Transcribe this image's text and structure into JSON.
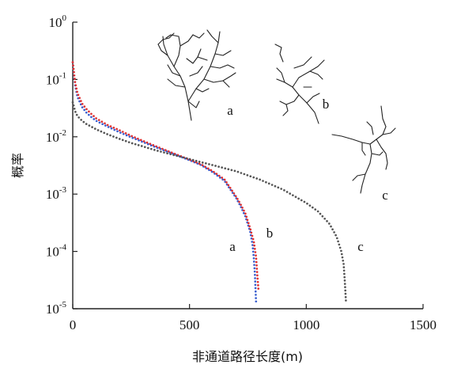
{
  "chart_data": {
    "type": "scatter",
    "title": "",
    "xlabel": "非通道路径长度(m)",
    "ylabel": "概率",
    "xlim": [
      0,
      1500
    ],
    "ylim": [
      1e-05,
      1
    ],
    "y_scale": "log",
    "x_ticks": [
      "0",
      "500",
      "1000",
      "1500"
    ],
    "y_ticks": [
      {
        "base": "10",
        "exp": "0"
      },
      {
        "base": "10",
        "exp": "-1"
      },
      {
        "base": "10",
        "exp": "-2"
      },
      {
        "base": "10",
        "exp": "-3"
      },
      {
        "base": "10",
        "exp": "-4"
      },
      {
        "base": "10",
        "exp": "-5"
      }
    ],
    "grid": false,
    "legend": "none",
    "series": [
      {
        "label": "a",
        "color": "#3a5fd0",
        "x": [
          0,
          10,
          20,
          40,
          60,
          80,
          100,
          150,
          200,
          250,
          300,
          350,
          400,
          450,
          500,
          550,
          600,
          650,
          700,
          720,
          740,
          760,
          770,
          775,
          780,
          785
        ],
        "y": [
          0.2,
          0.08,
          0.05,
          0.033,
          0.026,
          0.022,
          0.019,
          0.015,
          0.012,
          0.0098,
          0.0081,
          0.0067,
          0.0056,
          0.0047,
          0.0039,
          0.0032,
          0.0024,
          0.0017,
          0.00085,
          0.0006,
          0.0004,
          0.00022,
          0.00013,
          8e-05,
          4e-05,
          1.3e-05
        ]
      },
      {
        "label": "b",
        "color": "#e03030",
        "x": [
          0,
          10,
          20,
          40,
          60,
          80,
          100,
          150,
          200,
          250,
          300,
          350,
          400,
          450,
          500,
          550,
          600,
          650,
          700,
          720,
          740,
          760,
          775,
          785,
          790,
          795
        ],
        "y": [
          0.2,
          0.09,
          0.058,
          0.038,
          0.03,
          0.025,
          0.021,
          0.016,
          0.013,
          0.0104,
          0.0085,
          0.007,
          0.0058,
          0.0048,
          0.004,
          0.0033,
          0.0025,
          0.0018,
          0.0009,
          0.00065,
          0.00045,
          0.00025,
          0.00015,
          8e-05,
          4e-05,
          2.2e-05
        ]
      },
      {
        "label": "c",
        "color": "#555555",
        "x": [
          0,
          10,
          20,
          40,
          60,
          80,
          100,
          150,
          200,
          250,
          300,
          350,
          400,
          450,
          500,
          550,
          600,
          700,
          800,
          900,
          1000,
          1050,
          1100,
          1130,
          1150,
          1160,
          1165,
          1170
        ],
        "y": [
          0.04,
          0.028,
          0.023,
          0.019,
          0.0165,
          0.015,
          0.0135,
          0.011,
          0.0092,
          0.0078,
          0.0068,
          0.0059,
          0.0052,
          0.0046,
          0.0041,
          0.0036,
          0.0032,
          0.0025,
          0.0018,
          0.0012,
          0.0007,
          0.0005,
          0.0003,
          0.00018,
          0.0001,
          6e-05,
          3e-05,
          1.3e-05
        ]
      }
    ]
  },
  "insets": [
    {
      "label": "a"
    },
    {
      "label": "b"
    },
    {
      "label": "c"
    }
  ]
}
